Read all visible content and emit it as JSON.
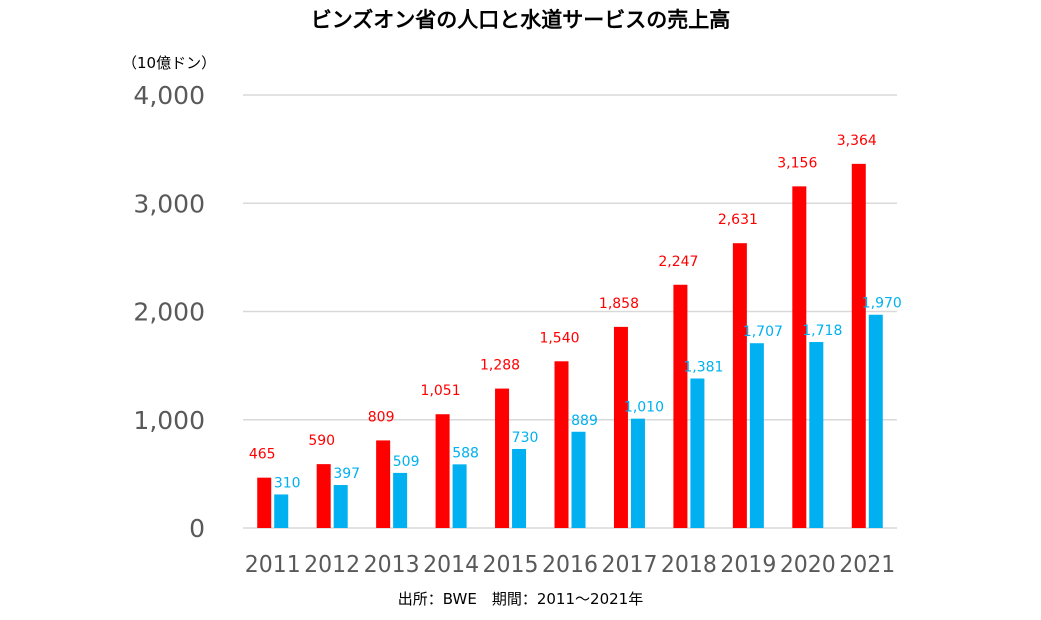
{
  "chart_data": {
    "type": "bar",
    "title": "ビンズオン省の人口と水道サービスの売上高",
    "unit_label": "（10億ドン）",
    "source_note": "出所：BWE　期間：2011～2021年",
    "categories": [
      "2011",
      "2012",
      "2013",
      "2014",
      "2015",
      "2016",
      "2017",
      "2018",
      "2019",
      "2020",
      "2021"
    ],
    "series": [
      {
        "color": "#FF0000",
        "values": [
          465,
          590,
          809,
          1051,
          1288,
          1540,
          1858,
          2247,
          2631,
          3156,
          3364
        ],
        "labels": [
          "465",
          "590",
          "809",
          "1,051",
          "1,288",
          "1,540",
          "1,858",
          "2,247",
          "2,631",
          "3,156",
          "3,364"
        ]
      },
      {
        "color": "#00B0F0",
        "values": [
          310,
          397,
          509,
          588,
          730,
          889,
          1010,
          1381,
          1707,
          1718,
          1970
        ],
        "labels": [
          "310",
          "397",
          "509",
          "588",
          "730",
          "889",
          "1,010",
          "1,381",
          "1,707",
          "1,718",
          "1,970"
        ]
      }
    ],
    "ylim": [
      0,
      4000
    ],
    "yticks": [
      0,
      1000,
      2000,
      3000,
      4000
    ],
    "ytick_labels": [
      "0",
      "1,000",
      "2,000",
      "3,000",
      "4,000"
    ],
    "grid": true,
    "legend": "none"
  }
}
